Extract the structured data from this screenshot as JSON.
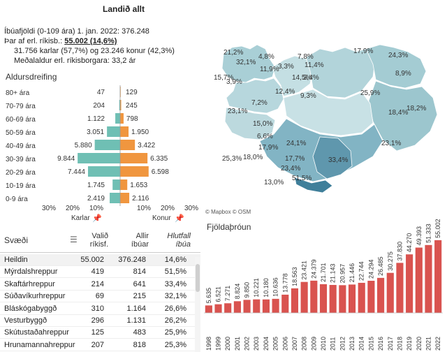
{
  "header": {
    "title": "Landið allt",
    "line1": "Íbúafjöldi (0-109 ára) 1. jan. 2022: 376.248",
    "line2_prefix": "Þar af erl. ríkisb.: ",
    "line2_value": "55.002 (14,6%)",
    "line3": "31.756 karlar (57,7%) og 23.246 konur (42,3%)",
    "line4": "Meðalaldur erl. ríkisborgara: 33,2 ár"
  },
  "age": {
    "title": "Aldursdreifing",
    "x_ticks": [
      "30%",
      "20%",
      "10%",
      "10%",
      "20%",
      "30%"
    ],
    "male_label": "Karlar",
    "female_label": "Konur",
    "colors": {
      "male": "#6fbfb4",
      "female": "#f0963f"
    }
  },
  "map": {
    "credit": "© Mapbox © OSM",
    "labels": [
      "21,2%",
      "32,1%",
      "4,8%",
      "11,9%",
      "15,7%",
      "3,9%",
      "3,3%",
      "14,5%",
      "7,8%",
      "11,4%",
      "3,4%",
      "17,9%",
      "24,3%",
      "8,9%",
      "12,4%",
      "9,3%",
      "25,9%",
      "7,2%",
      "23,1%",
      "15,0%",
      "18,4%",
      "18,2%",
      "6,6%",
      "17,9%",
      "24,1%",
      "23,1%",
      "25,3%",
      "18,0%",
      "17,7%",
      "33,4%",
      "23,4%",
      "13,0%",
      "51,5%"
    ]
  },
  "table": {
    "headers": {
      "region": "Svæði",
      "foreign": [
        "Valið",
        "ríkisf."
      ],
      "all": [
        "Allir",
        "íbúar"
      ],
      "share": [
        "Hlutfall",
        "íbúa"
      ]
    },
    "rows": [
      {
        "name": "Heildin",
        "foreign": "55.002",
        "all": "376.248",
        "share": "14,6%"
      },
      {
        "name": "Mýrdalshreppur",
        "foreign": "419",
        "all": "814",
        "share": "51,5%"
      },
      {
        "name": "Skaftárhreppur",
        "foreign": "214",
        "all": "641",
        "share": "33,4%"
      },
      {
        "name": "Súðavíkurhreppur",
        "foreign": "69",
        "all": "215",
        "share": "32,1%"
      },
      {
        "name": "Bláskógabyggð",
        "foreign": "310",
        "all": "1.164",
        "share": "26,6%"
      },
      {
        "name": "Vesturbyggð",
        "foreign": "296",
        "all": "1.131",
        "share": "26,2%"
      },
      {
        "name": "Skútustaðahreppur",
        "foreign": "125",
        "all": "483",
        "share": "25,9%"
      },
      {
        "name": "Hrunamannahreppur",
        "foreign": "207",
        "all": "818",
        "share": "25,3%"
      }
    ]
  },
  "trend": {
    "title": "Fjöldaþróun",
    "bar_color": "#d9534f"
  },
  "chart_data": [
    {
      "type": "bar",
      "orientation": "horizontal-pyramid",
      "categories": [
        "80+ ára",
        "70-79 ára",
        "60-69 ára",
        "50-59 ára",
        "40-49 ára",
        "30-39 ára",
        "20-29 ára",
        "10-19 ára",
        "0-9 ára"
      ],
      "series": [
        {
          "name": "Karlar",
          "labels": [
            "47",
            "204",
            "1.122",
            "3.051",
            "5.880",
            "9.844",
            "7.444",
            "1.745",
            "2.419"
          ],
          "values": [
            47,
            204,
            1122,
            3051,
            5880,
            9844,
            7444,
            1745,
            2419
          ]
        },
        {
          "name": "Konur",
          "labels": [
            "129",
            "245",
            "798",
            "1.950",
            "3.422",
            "6.335",
            "6.598",
            "1.653",
            "2.116"
          ],
          "values": [
            129,
            245,
            798,
            1950,
            3422,
            6335,
            6598,
            1653,
            2116
          ]
        }
      ],
      "xlim_percent": [
        -30,
        30
      ]
    },
    {
      "type": "bar",
      "categories": [
        "1998",
        "1999",
        "2000",
        "2001",
        "2002",
        "2003",
        "2004",
        "2005",
        "2006",
        "2007",
        "2008",
        "2009",
        "2010",
        "2011",
        "2012",
        "2013",
        "2014",
        "2015",
        "2016",
        "2017",
        "2018",
        "2019",
        "2020",
        "2021",
        "2022"
      ],
      "labels": [
        "5.635",
        "6.521",
        "7.271",
        "8.824",
        "9.850",
        "10.221",
        "10.180",
        "10.636",
        "13.778",
        "18.563",
        "23.421",
        "24.379",
        "21.701",
        "21.143",
        "20.957",
        "21.446",
        "22.744",
        "24.294",
        "26.485",
        "30.275",
        "37.830",
        "44.270",
        "49.393",
        "51.333",
        "55.002"
      ],
      "values": [
        5635,
        6521,
        7271,
        8824,
        9850,
        10221,
        10180,
        10636,
        13778,
        18563,
        23421,
        24379,
        21701,
        21143,
        20957,
        21446,
        22744,
        24294,
        26485,
        30275,
        37830,
        44270,
        49393,
        51333,
        55002
      ],
      "ylim": [
        0,
        56000
      ]
    }
  ]
}
